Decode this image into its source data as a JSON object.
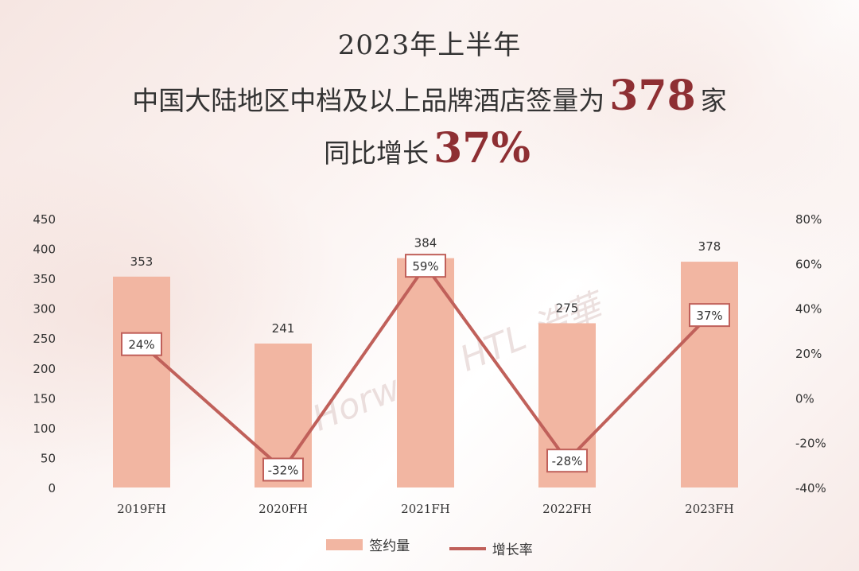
{
  "title": {
    "line1": "2023年上半年",
    "line2_prefix": "中国大陆地区中档及以上品牌酒店签量为",
    "line2_highlight": "378",
    "line2_suffix": "家",
    "line3_prefix": "同比增长",
    "line3_highlight": "37%"
  },
  "watermark": "Horwath HTL 浩華",
  "colors": {
    "bar": "#f2b6a2",
    "line": "#c0605a",
    "highlight": "#8e2f33"
  },
  "chart_data": {
    "type": "bar",
    "categories": [
      "2019FH",
      "2020FH",
      "2021FH",
      "2022FH",
      "2023FH"
    ],
    "series": [
      {
        "name": "签约量",
        "type": "bar",
        "axis": "left",
        "values": [
          353,
          241,
          384,
          275,
          378
        ],
        "labels": [
          "353",
          "241",
          "384",
          "275",
          "378"
        ]
      },
      {
        "name": "增长率",
        "type": "line",
        "axis": "right",
        "values": [
          24,
          -32,
          59,
          -28,
          37
        ],
        "labels": [
          "24%",
          "-32%",
          "59%",
          "-28%",
          "37%"
        ]
      }
    ],
    "ylim_left": [
      0,
      450
    ],
    "yticks_left": [
      "0",
      "50",
      "100",
      "150",
      "200",
      "250",
      "300",
      "350",
      "400",
      "450"
    ],
    "ylim_right": [
      -40,
      80
    ],
    "yticks_right": [
      "-40%",
      "-20%",
      "0%",
      "20%",
      "40%",
      "60%",
      "80%"
    ],
    "grid": false,
    "legend_position": "bottom-center"
  },
  "legend": {
    "bar_label": "签约量",
    "line_label": "增长率"
  }
}
